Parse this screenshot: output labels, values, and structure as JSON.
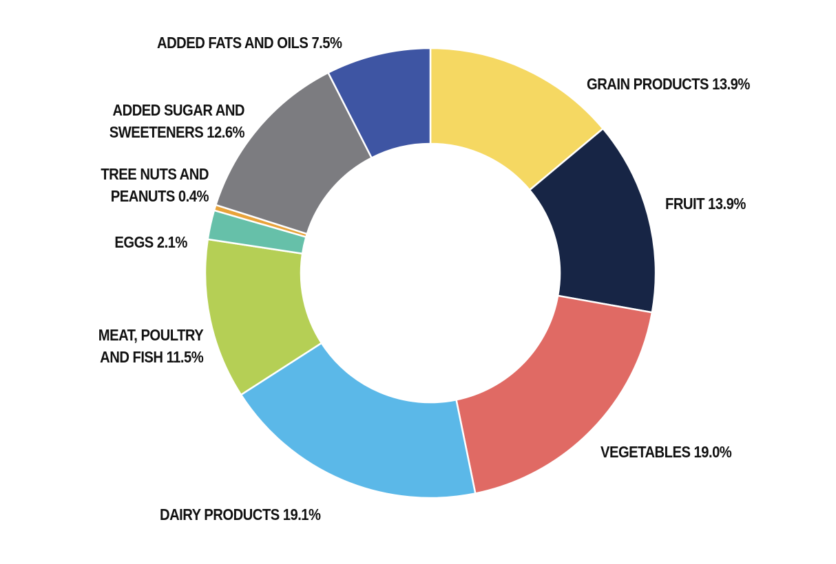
{
  "chart_data": {
    "type": "pie",
    "donut": true,
    "start_angle": "12 o'clock",
    "direction": "clockwise",
    "legend": "none",
    "slices": [
      {
        "label": "GRAIN PRODUCTS",
        "value": 13.9,
        "text": "GRAIN PRODUCTS 13.9%",
        "color": "#F5D862"
      },
      {
        "label": "FRUIT",
        "value": 13.9,
        "text": "FRUIT 13.9%",
        "color": "#172545"
      },
      {
        "label": "VEGETABLES",
        "value": 19.0,
        "text": "VEGETABLES 19.0%",
        "color": "#E06A64"
      },
      {
        "label": "DAIRY PRODUCTS",
        "value": 19.1,
        "text": "DAIRY PRODUCTS 19.1%",
        "color": "#5BB8E8"
      },
      {
        "label": "MEAT, POULTRY AND FISH",
        "value": 11.5,
        "lines": [
          "MEAT, POULTRY",
          "AND FISH 11.5%"
        ],
        "color": "#B5CF55"
      },
      {
        "label": "EGGS",
        "value": 2.1,
        "text": "EGGS 2.1%",
        "color": "#66C0A9"
      },
      {
        "label": "TREE NUTS AND PEANUTS",
        "value": 0.4,
        "lines": [
          "TREE NUTS AND",
          "PEANUTS 0.4%"
        ],
        "color": "#E8A33A"
      },
      {
        "label": "ADDED SUGAR AND SWEETENERS",
        "value": 12.6,
        "lines": [
          "ADDED SUGAR AND",
          "SWEETENERS 12.6%"
        ],
        "color": "#7C7C80"
      },
      {
        "label": "ADDED FATS AND OILS",
        "value": 7.5,
        "text": "ADDED FATS AND OILS 7.5%",
        "color": "#3E55A3"
      }
    ]
  }
}
